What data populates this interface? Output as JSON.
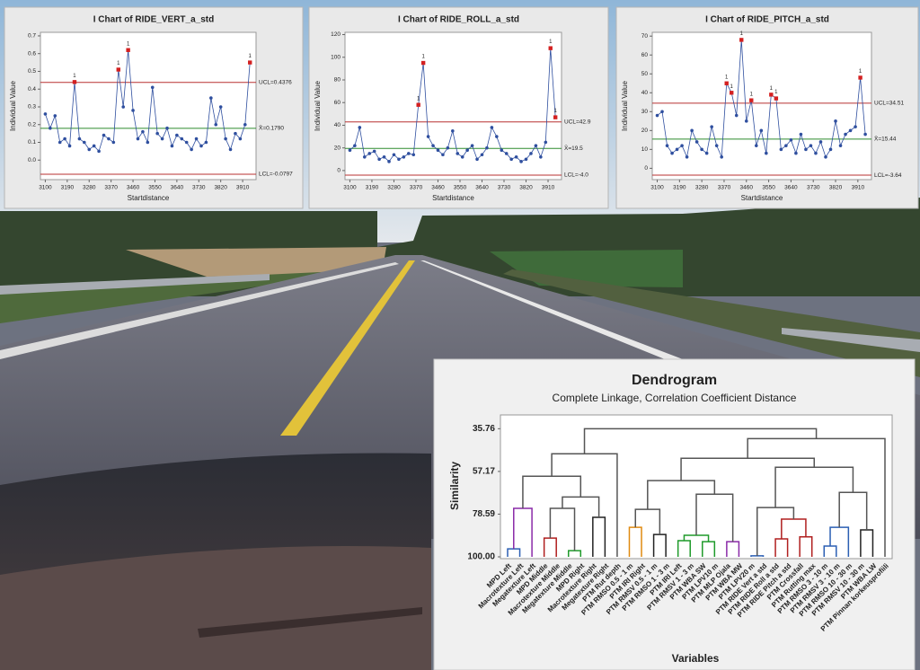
{
  "chart_data": [
    {
      "type": "control",
      "title": "I Chart of RIDE_VERT_a_std",
      "x_label": "Startdistance",
      "y_label": "Individual Value",
      "x": [
        3100,
        3120,
        3140,
        3160,
        3180,
        3200,
        3220,
        3240,
        3260,
        3280,
        3300,
        3320,
        3340,
        3360,
        3380,
        3400,
        3420,
        3440,
        3460,
        3480,
        3500,
        3520,
        3540,
        3560,
        3580,
        3600,
        3620,
        3640,
        3660,
        3680,
        3700,
        3720,
        3740,
        3760,
        3780,
        3800,
        3820,
        3840,
        3860,
        3880,
        3900,
        3920,
        3940
      ],
      "values": [
        0.26,
        0.18,
        0.25,
        0.1,
        0.12,
        0.08,
        0.44,
        0.12,
        0.1,
        0.06,
        0.08,
        0.05,
        0.14,
        0.12,
        0.1,
        0.51,
        0.3,
        0.62,
        0.28,
        0.12,
        0.16,
        0.1,
        0.41,
        0.15,
        0.12,
        0.18,
        0.08,
        0.14,
        0.12,
        0.1,
        0.06,
        0.12,
        0.08,
        0.1,
        0.35,
        0.2,
        0.3,
        0.12,
        0.06,
        0.15,
        0.12,
        0.2,
        0.55
      ],
      "color": "#2f4f9f",
      "flag_color": "#d42020",
      "flag_label": "1",
      "out_of_control": [
        6,
        15,
        17,
        42
      ],
      "control_lines": [
        {
          "value": 0.4376,
          "label": "UCL=0.4376",
          "color": "#b83030"
        },
        {
          "value": 0.179,
          "label": "X̄=0.1790",
          "color": "#2e8b2e"
        },
        {
          "value": -0.0797,
          "label": "LCL=-0.0797",
          "color": "#b83030"
        }
      ],
      "xlim": [
        3080,
        3965
      ],
      "xticks": [
        3100,
        3190,
        3280,
        3370,
        3460,
        3550,
        3640,
        3730,
        3820,
        3910
      ],
      "ylim": [
        -0.11,
        0.72
      ],
      "yticks": [
        {
          "value": 0,
          "label": "0.0"
        },
        0.1,
        0.2,
        0.3,
        0.4,
        0.5,
        0.6,
        0.7
      ]
    },
    {
      "type": "control",
      "title": "I Chart of RIDE_ROLL_a_std",
      "x_label": "Startdistance",
      "y_label": "Individual Value",
      "x": [
        3100,
        3120,
        3140,
        3160,
        3180,
        3200,
        3220,
        3240,
        3260,
        3280,
        3300,
        3320,
        3340,
        3360,
        3380,
        3400,
        3420,
        3440,
        3460,
        3480,
        3500,
        3520,
        3540,
        3560,
        3580,
        3600,
        3620,
        3640,
        3660,
        3680,
        3700,
        3720,
        3740,
        3760,
        3780,
        3800,
        3820,
        3840,
        3860,
        3880,
        3900,
        3920,
        3940
      ],
      "values": [
        18,
        22,
        38,
        12,
        15,
        17,
        10,
        12,
        8,
        14,
        10,
        12,
        15,
        14,
        58,
        95,
        30,
        22,
        18,
        14,
        20,
        35,
        15,
        12,
        18,
        22,
        10,
        14,
        20,
        38,
        30,
        18,
        15,
        10,
        12,
        8,
        10,
        15,
        22,
        12,
        25,
        108,
        47
      ],
      "color": "#2f4f9f",
      "flag_color": "#d42020",
      "flag_label": "1",
      "out_of_control": [
        14,
        15,
        41,
        42
      ],
      "control_lines": [
        {
          "value": 42.9,
          "label": "UCL=42.9",
          "color": "#b83030"
        },
        {
          "value": 19.5,
          "label": "X̄=19.5",
          "color": "#2e8b2e"
        },
        {
          "value": -4.0,
          "label": "LCL=-4.0",
          "color": "#b83030"
        }
      ],
      "xlim": [
        3080,
        3965
      ],
      "xticks": [
        3100,
        3190,
        3280,
        3370,
        3460,
        3550,
        3640,
        3730,
        3820,
        3910
      ],
      "ylim": [
        -8,
        122
      ],
      "yticks": [
        0,
        20,
        40,
        60,
        80,
        100,
        120
      ]
    },
    {
      "type": "control",
      "title": "I Chart of RIDE_PITCH_a_std",
      "x_label": "Startdistance",
      "y_label": "Individual Value",
      "x": [
        3100,
        3120,
        3140,
        3160,
        3180,
        3200,
        3220,
        3240,
        3260,
        3280,
        3300,
        3320,
        3340,
        3360,
        3380,
        3400,
        3420,
        3440,
        3460,
        3480,
        3500,
        3520,
        3540,
        3560,
        3580,
        3600,
        3620,
        3640,
        3660,
        3680,
        3700,
        3720,
        3740,
        3760,
        3780,
        3800,
        3820,
        3840,
        3860,
        3880,
        3900,
        3920,
        3940
      ],
      "values": [
        28,
        30,
        12,
        8,
        10,
        12,
        6,
        20,
        14,
        10,
        8,
        22,
        12,
        6,
        45,
        40,
        28,
        68,
        25,
        36,
        12,
        20,
        8,
        39,
        37,
        10,
        12,
        15,
        8,
        18,
        10,
        12,
        8,
        14,
        6,
        10,
        25,
        12,
        18,
        20,
        22,
        48,
        18
      ],
      "color": "#2f4f9f",
      "flag_color": "#d42020",
      "flag_label": "1",
      "out_of_control": [
        14,
        15,
        17,
        19,
        23,
        24,
        41
      ],
      "control_lines": [
        {
          "value": 34.51,
          "label": "UCL=34.51",
          "color": "#b83030"
        },
        {
          "value": 15.44,
          "label": "X̄=15.44",
          "color": "#2e8b2e"
        },
        {
          "value": -3.64,
          "label": "LCL=-3.64",
          "color": "#b83030"
        }
      ],
      "xlim": [
        3080,
        3965
      ],
      "xticks": [
        3100,
        3190,
        3280,
        3370,
        3460,
        3550,
        3640,
        3730,
        3820,
        3910
      ],
      "ylim": [
        -6,
        72
      ],
      "yticks": [
        0,
        10,
        20,
        30,
        40,
        50,
        60,
        70
      ]
    },
    {
      "type": "dendrogram",
      "title": "Dendrogram",
      "subtitle": "Complete Linkage, Correlation Coefficient Distance",
      "x_label": "Variables",
      "y_label": "Similarity",
      "leaves": [
        "MPD Left",
        "Macrotexture Left",
        "Megatexture Left",
        "MPD Middle",
        "Macrotexture Middle",
        "Megatexture Middle",
        "MPD Right",
        "Macrotexture Right",
        "Megatexture Right",
        "PTM Rut depth",
        "PTM RMSO 0.5 - 1 m",
        "PTM IRI Right",
        "PTM RMSV 0.5 - 1 m",
        "PTM RMSO 1 - 3 m",
        "PTM IRI Left",
        "PTM RMSV 1 - 3 m",
        "PTM WBA SW",
        "PTM LPV10 m",
        "PTM MLP Ojala",
        "PTM WBA MW",
        "PTM LPV20 m",
        "PTM RIDE Vert a std",
        "PTM RIDE Roll a std",
        "PTM RIDE Pitch a std",
        "PTM Crossfall",
        "PTM Rutting max",
        "PTM RMSO 3 - 10 m",
        "PTM RMSV 3 - 10 m",
        "PTM RMSO 10 - 30 m",
        "PTM RMSV 10 - 30 m",
        "PTM WBA LW",
        "PTM Pinnan korkeusprofiili"
      ],
      "merges": [
        {
          "left": 0,
          "right": 1,
          "similarity": 96.0,
          "color": "#2b5fb3"
        },
        {
          "left": 32,
          "right": 2,
          "similarity": 75.7,
          "color": "#8a2aa8"
        },
        {
          "left": 3,
          "right": 4,
          "similarity": 90.6,
          "color": "#b01f1f"
        },
        {
          "left": 5,
          "right": 6,
          "similarity": 96.9,
          "color": "#1f9a2a"
        },
        {
          "left": 34,
          "right": 35,
          "similarity": 75.7,
          "color": "#555555"
        },
        {
          "left": 7,
          "right": 8,
          "similarity": 80.2,
          "color": "#222222"
        },
        {
          "left": 36,
          "right": 37,
          "similarity": 70.0,
          "color": "#555555"
        },
        {
          "left": 33,
          "right": 38,
          "similarity": 59.6,
          "color": "#555555"
        },
        {
          "left": 39,
          "right": 9,
          "similarity": 48.3,
          "color": "#555555"
        },
        {
          "left": 10,
          "right": 11,
          "similarity": 85.2,
          "color": "#e08a10"
        },
        {
          "left": 12,
          "right": 13,
          "similarity": 88.8,
          "color": "#222222"
        },
        {
          "left": 41,
          "right": 42,
          "similarity": 76.2,
          "color": "#555555"
        },
        {
          "left": 14,
          "right": 15,
          "similarity": 91.9,
          "color": "#1f9a2a"
        },
        {
          "left": 16,
          "right": 17,
          "similarity": 92.4,
          "color": "#1f9a2a"
        },
        {
          "left": 44,
          "right": 45,
          "similarity": 89.2,
          "color": "#1f9a2a"
        },
        {
          "left": 18,
          "right": 19,
          "similarity": 92.4,
          "color": "#8a2aa8"
        },
        {
          "left": 46,
          "right": 47,
          "similarity": 68.6,
          "color": "#555555"
        },
        {
          "left": 43,
          "right": 48,
          "similarity": 61.8,
          "color": "#555555"
        },
        {
          "left": 20,
          "right": 21,
          "similarity": 99.5,
          "color": "#2b5fb3"
        },
        {
          "left": 22,
          "right": 23,
          "similarity": 91.0,
          "color": "#b01f1f"
        },
        {
          "left": 24,
          "right": 25,
          "similarity": 90.0,
          "color": "#b01f1f"
        },
        {
          "left": 51,
          "right": 52,
          "similarity": 81.1,
          "color": "#b01f1f"
        },
        {
          "left": 50,
          "right": 53,
          "similarity": 75.3,
          "color": "#555555"
        },
        {
          "left": 26,
          "right": 27,
          "similarity": 94.6,
          "color": "#2b5fb3"
        },
        {
          "left": 55,
          "right": 28,
          "similarity": 85.2,
          "color": "#2b5fb3"
        },
        {
          "left": 29,
          "right": 30,
          "similarity": 86.5,
          "color": "#222222"
        },
        {
          "left": 56,
          "right": 57,
          "similarity": 67.7,
          "color": "#555555"
        },
        {
          "left": 54,
          "right": 58,
          "similarity": 55.1,
          "color": "#555555"
        },
        {
          "left": 49,
          "right": 59,
          "similarity": 50.6,
          "color": "#555555"
        },
        {
          "left": 60,
          "right": 31,
          "similarity": 40.7,
          "color": "#555555"
        },
        {
          "left": 40,
          "right": 61,
          "similarity": 35.76,
          "color": "#555555"
        }
      ],
      "ylim": [
        100,
        32
      ],
      "yticks": [
        35.76,
        57.17,
        78.59,
        {
          "value": 100,
          "label": "100.00"
        }
      ]
    }
  ]
}
